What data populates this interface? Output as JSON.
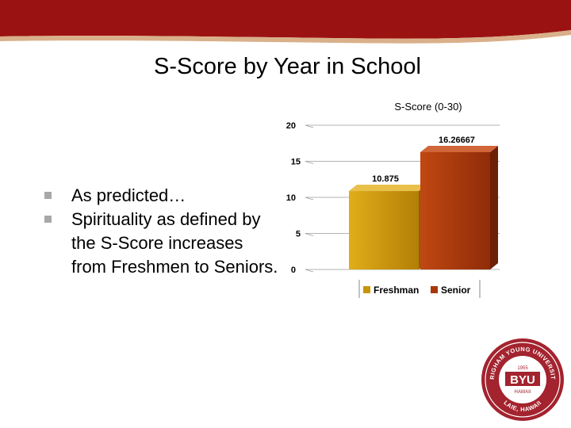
{
  "slide": {
    "title": "S-Score by Year in School",
    "bullets": [
      "As predicted…",
      "Spirituality as defined by the S-Score increases from Freshmen to Seniors."
    ]
  },
  "colors": {
    "header_red": "#9b1212",
    "bullet_gray": "#a8a8a8",
    "freshman_bar": "#c99508",
    "senior_bar": "#a8380c",
    "seal_red": "#a3232e"
  },
  "chart_data": {
    "type": "bar",
    "title": "S-Score (0-30)",
    "categories": [
      "Freshman",
      "Senior"
    ],
    "values": [
      10.875,
      16.26667
    ],
    "data_labels": [
      "10.875",
      "16.26667"
    ],
    "yticks": [
      "0",
      "5",
      "10",
      "15",
      "20"
    ],
    "ylim": [
      0,
      20
    ],
    "grid": true,
    "legend": "bottom",
    "xlabel": "",
    "ylabel": ""
  },
  "logo": {
    "text": "BYU",
    "arc_text": "BRIGHAM YOUNG UNIVERSITY",
    "year": "1955",
    "sub": "HAWAII",
    "bottom": "LAIE, HAWAII"
  }
}
